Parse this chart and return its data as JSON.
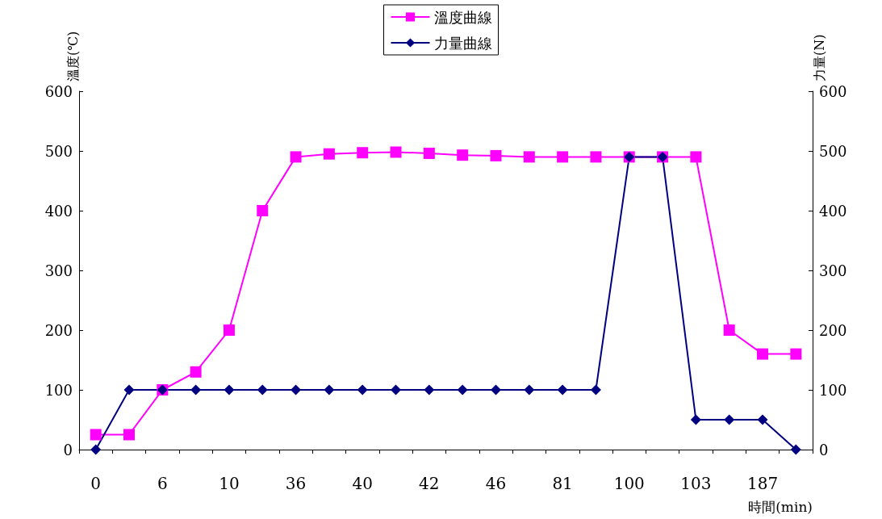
{
  "chart_data": {
    "type": "line",
    "xlabel": "時間(min)",
    "ylabel": "溫度(℃)",
    "y2label": "力量(N)",
    "categories": [
      "0",
      null,
      "6",
      null,
      "10",
      null,
      "36",
      null,
      "40",
      null,
      "42",
      null,
      "46",
      null,
      "81",
      null,
      "100",
      null,
      "103",
      null,
      "187",
      null
    ],
    "series": [
      {
        "name": "溫度曲線",
        "color": "#ff00ff",
        "marker": "square",
        "values": [
          25,
          25,
          100,
          130,
          200,
          400,
          490,
          495,
          497,
          498,
          496,
          493,
          492,
          490,
          490,
          490,
          490,
          490,
          490,
          200,
          160,
          160
        ]
      },
      {
        "name": "力量曲線",
        "color": "#000080",
        "marker": "diamond",
        "axis": "y2",
        "values": [
          0,
          100,
          100,
          100,
          100,
          100,
          100,
          100,
          100,
          100,
          100,
          100,
          100,
          100,
          100,
          100,
          490,
          490,
          50,
          50,
          50,
          0
        ]
      }
    ],
    "ylim": [
      0,
      600
    ],
    "yticks": [
      0,
      100,
      200,
      300,
      400,
      500,
      600
    ],
    "y2lim": [
      0,
      600
    ],
    "y2ticks": [
      0,
      100,
      200,
      300,
      400,
      500,
      600
    ],
    "grid": false,
    "legend": "top"
  }
}
